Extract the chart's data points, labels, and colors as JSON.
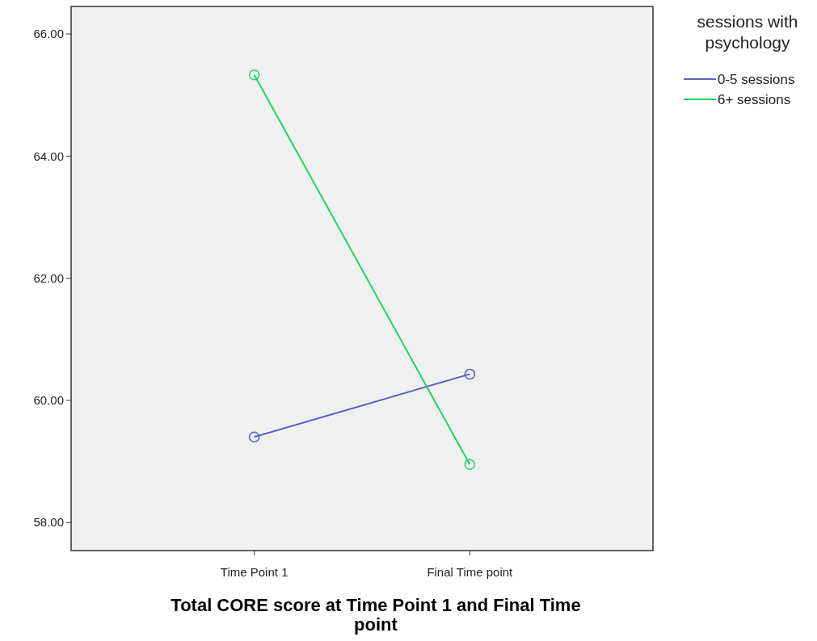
{
  "chart_data": {
    "type": "line",
    "xlabel": "Total CORE score at Time Point 1 and Final Time point",
    "legend_title": "sessions with psychology",
    "categories": [
      "Time Point 1",
      "Final Time point"
    ],
    "series": [
      {
        "name": "0-5 sessions",
        "color": "#5b5fc7",
        "values": [
          59.4,
          60.43
        ]
      },
      {
        "name": "6+ sessions",
        "color": "#1ed760",
        "values": [
          65.33,
          58.95
        ]
      }
    ],
    "ylim": [
      57.54,
      66.45
    ],
    "yticks": [
      {
        "value": 58,
        "label": "58.00"
      },
      {
        "value": 60,
        "label": "60.00"
      },
      {
        "value": 62,
        "label": "62.00"
      },
      {
        "value": 64,
        "label": "64.00"
      },
      {
        "value": 66,
        "label": "66.00"
      }
    ],
    "marker": "circle",
    "line_style": "solid",
    "legend": "top right",
    "grid": false
  }
}
